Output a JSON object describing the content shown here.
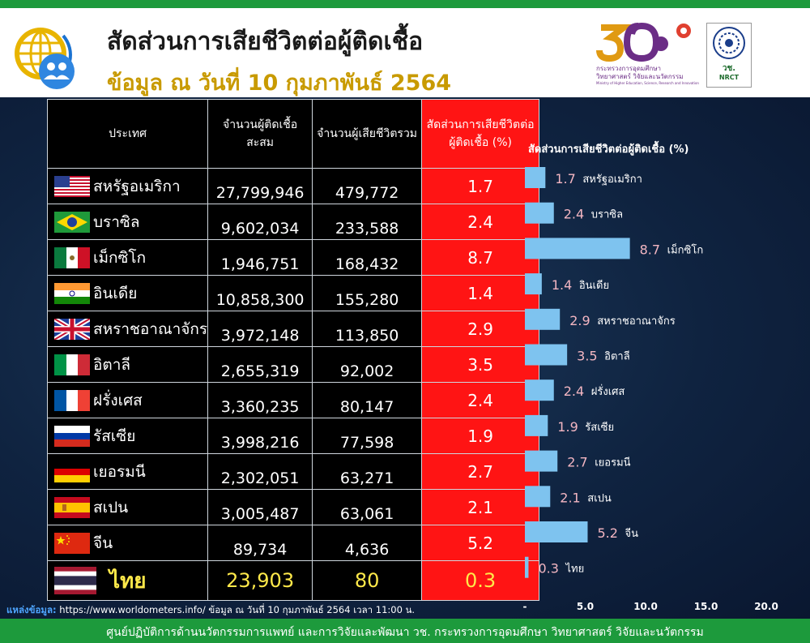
{
  "header": {
    "title": "สัดส่วนการเสียชีวิตต่อผู้ติดเชื้อ",
    "subtitle": "ข้อมูล ณ วันที่ 10 กุมภาพันธ์ 2564",
    "ministry_logo_line1": "กระทรวงการอุดมศึกษา",
    "ministry_logo_line2": "วิทยาศาสตร์ วิจัยและนวัตกรรม",
    "ministry_logo_line3": "Ministry of Higher Education, Science, Research and Innovation",
    "nrct_logo_line1": "วช.",
    "nrct_logo_line2": "NRCT"
  },
  "table": {
    "headers": {
      "country": "ประเทศ",
      "cases": "จำนวนผู้ติดเชื้อ สะสม",
      "deaths": "จำนวนผู้เสียชีวิตรวม",
      "rate": "สัดส่วนการเสียชีวิตต่อผู้ติดเชื้อ (%)"
    },
    "rows": [
      {
        "country": "สหรัฐอเมริกา",
        "flag": "us-flag-icon",
        "cases": "27,799,946",
        "deaths": "479,772",
        "rate": "1.7"
      },
      {
        "country": "บราซิล",
        "flag": "brazil-flag-icon",
        "cases": "9,602,034",
        "deaths": "233,588",
        "rate": "2.4"
      },
      {
        "country": "เม็กซิโก",
        "flag": "mexico-flag-icon",
        "cases": "1,946,751",
        "deaths": "168,432",
        "rate": "8.7"
      },
      {
        "country": "อินเดีย",
        "flag": "india-flag-icon",
        "cases": "10,858,300",
        "deaths": "155,280",
        "rate": "1.4"
      },
      {
        "country": "สหราชอาณาจักร",
        "flag": "uk-flag-icon",
        "cases": "3,972,148",
        "deaths": "113,850",
        "rate": "2.9"
      },
      {
        "country": "อิตาลี",
        "flag": "italy-flag-icon",
        "cases": "2,655,319",
        "deaths": "92,002",
        "rate": "3.5"
      },
      {
        "country": "ฝรั่งเศส",
        "flag": "france-flag-icon",
        "cases": "3,360,235",
        "deaths": "80,147",
        "rate": "2.4"
      },
      {
        "country": "รัสเซีย",
        "flag": "russia-flag-icon",
        "cases": "3,998,216",
        "deaths": "77,598",
        "rate": "1.9"
      },
      {
        "country": "เยอรมนี",
        "flag": "germany-flag-icon",
        "cases": "2,302,051",
        "deaths": "63,271",
        "rate": "2.7"
      },
      {
        "country": "สเปน",
        "flag": "spain-flag-icon",
        "cases": "3,005,487",
        "deaths": "63,061",
        "rate": "2.1"
      },
      {
        "country": "จีน",
        "flag": "china-flag-icon",
        "cases": "89,734",
        "deaths": "4,636",
        "rate": "5.2"
      },
      {
        "country": "ไทย",
        "flag": "thailand-flag-icon",
        "cases": "23,903",
        "deaths": "80",
        "rate": "0.3"
      }
    ]
  },
  "chart_data": {
    "type": "bar",
    "orientation": "horizontal",
    "title": "สัดส่วนการเสียชีวิตต่อผู้ติดเชื้อ (%)",
    "categories": [
      "สหรัฐอเมริกา",
      "บราซิล",
      "เม็กซิโก",
      "อินเดีย",
      "สหราชอาณาจักร",
      "อิตาลี",
      "ฝรั่งเศส",
      "รัสเซีย",
      "เยอรมนี",
      "สเปน",
      "จีน",
      "ไทย"
    ],
    "values": [
      1.7,
      2.4,
      8.7,
      1.4,
      2.9,
      3.5,
      2.4,
      1.9,
      2.7,
      2.1,
      5.2,
      0.3
    ],
    "xlim": [
      0,
      20
    ],
    "xticks": [
      "-",
      "5.0",
      "10.0",
      "15.0",
      "20.0"
    ],
    "grid": false,
    "bar_color": "#7ec3ef",
    "label_color": "#f3b6c2"
  },
  "source": {
    "label": "แหล่งข้อมูล:",
    "text": " https://www.worldometers.info/ ข้อมูล ณ วันที่ 10 กุมภาพันธ์ 2564 เวลา 11:00 น."
  },
  "footer": {
    "text": "ศูนย์ปฏิบัติการด้านนวัตกรรมการแพทย์ และการวิจัยและพัฒนา วช. กระทรวงการอุดมศึกษา วิทยาศาสตร์ วิจัยและนวัตกรรม"
  }
}
